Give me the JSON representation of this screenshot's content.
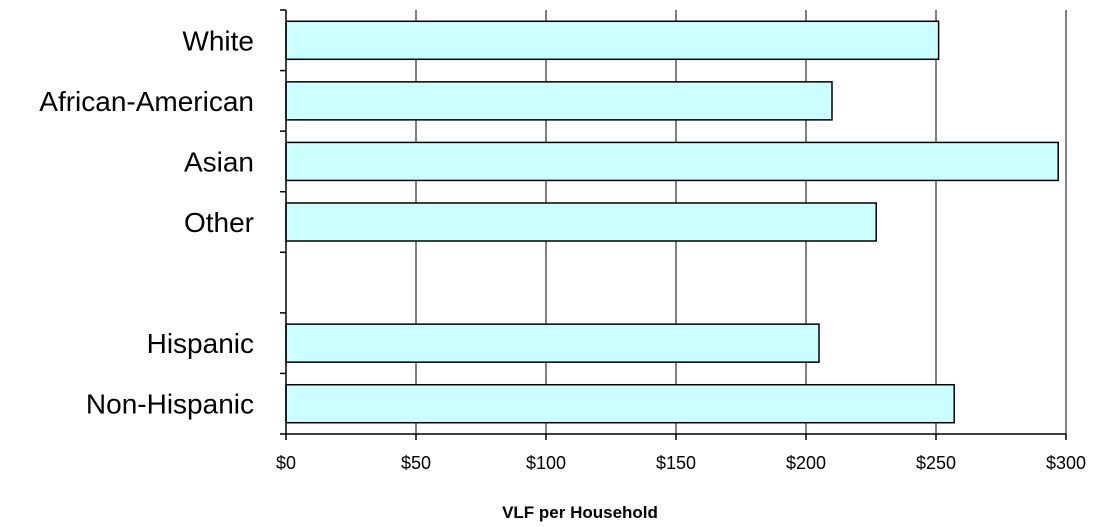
{
  "chart_data": {
    "type": "bar",
    "orientation": "horizontal",
    "title": "",
    "xlabel": "VLF per Household",
    "ylabel": "",
    "categories": [
      "White",
      "African-American",
      "Asian",
      "Other",
      "",
      "Hispanic",
      "Non-Hispanic"
    ],
    "values": [
      251,
      210,
      297,
      227,
      null,
      205,
      257
    ],
    "xlim": [
      0,
      300
    ],
    "xticks": [
      0,
      50,
      100,
      150,
      200,
      250,
      300
    ],
    "xtick_labels": [
      "$0",
      "$50",
      "$100",
      "$150",
      "$200",
      "$250",
      "$300"
    ],
    "grid": "vertical",
    "legend": "none",
    "bar_color": "#ccffff",
    "bar_edge_color": "#000000"
  }
}
